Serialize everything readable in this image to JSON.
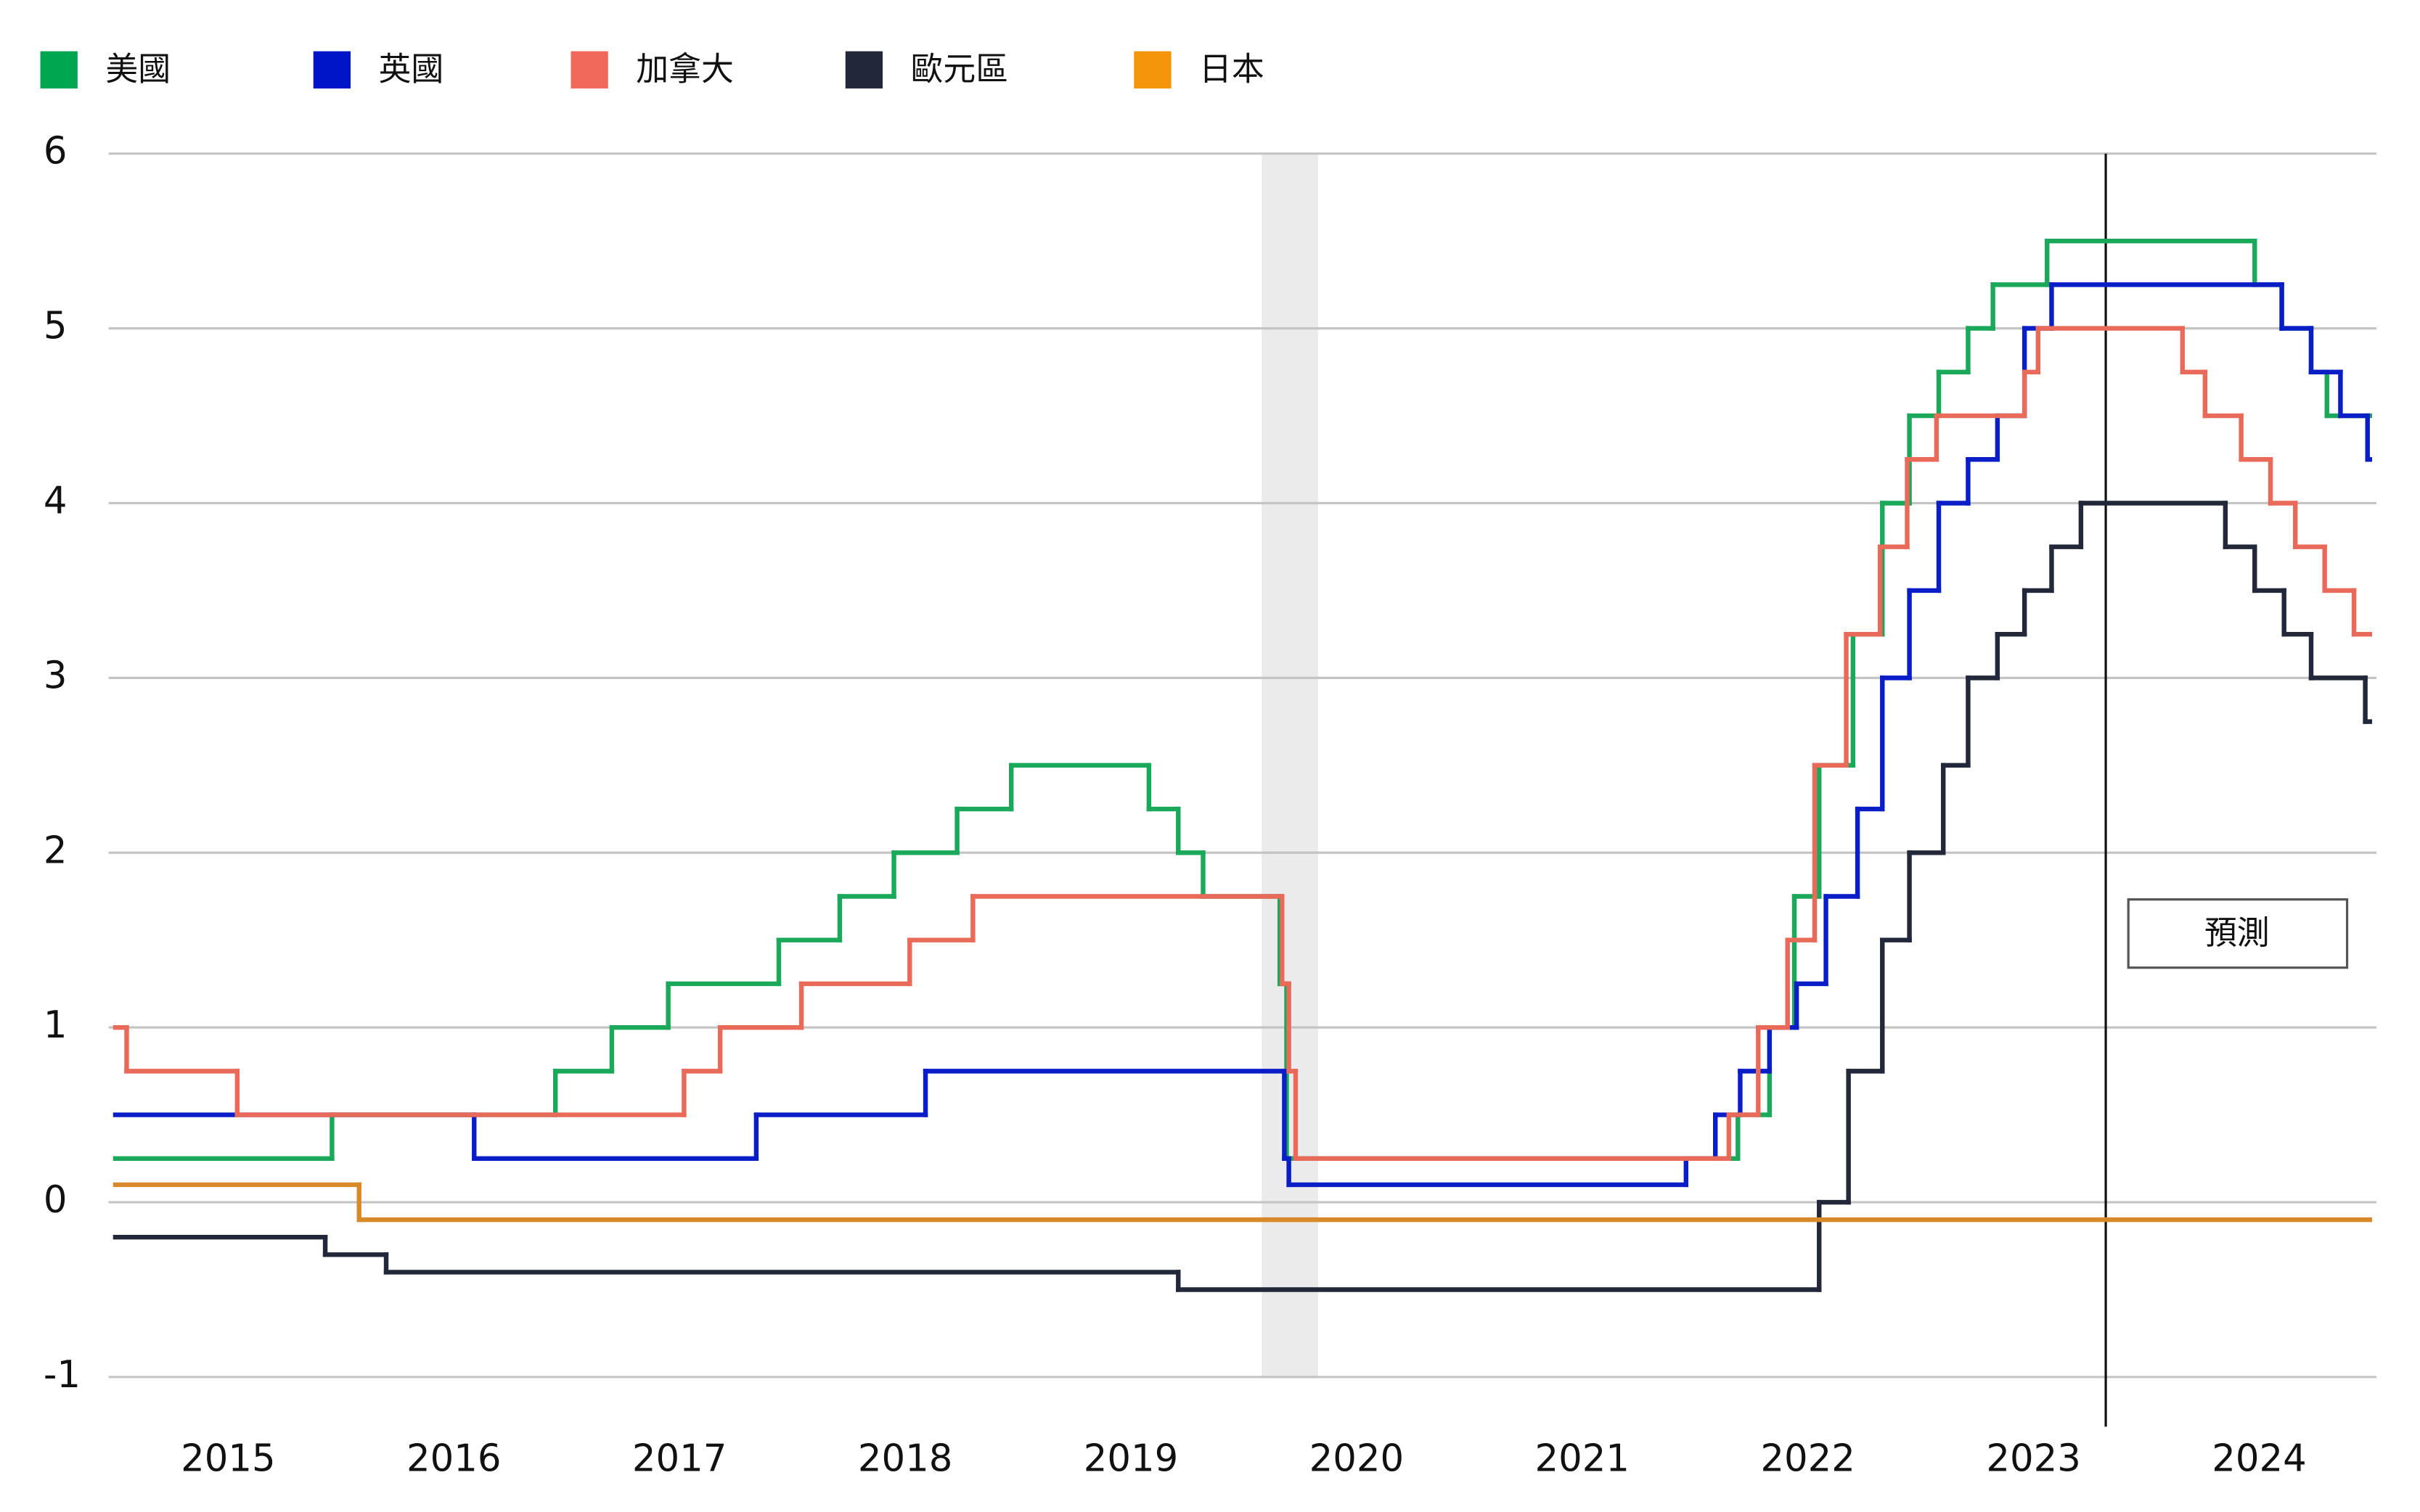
{
  "chart_data": {
    "type": "line",
    "step": "post",
    "xlim": [
      2014.97,
      2025.02
    ],
    "ylim": [
      -1,
      6
    ],
    "yticks": [
      -1,
      0,
      1,
      2,
      3,
      4,
      5,
      6
    ],
    "xticks": [
      {
        "value": 2015.5,
        "label": "2015"
      },
      {
        "value": 2016.5,
        "label": "2016"
      },
      {
        "value": 2017.5,
        "label": "2017"
      },
      {
        "value": 2018.5,
        "label": "2018"
      },
      {
        "value": 2019.5,
        "label": "2019"
      },
      {
        "value": 2020.5,
        "label": "2020"
      },
      {
        "value": 2021.5,
        "label": "2021"
      },
      {
        "value": 2022.5,
        "label": "2022"
      },
      {
        "value": 2023.5,
        "label": "2023"
      },
      {
        "value": 2024.5,
        "label": "2024"
      }
    ],
    "grid": true,
    "legend": "top-left",
    "shaded_ranges": [
      [
        2020.08,
        2020.33
      ]
    ],
    "forecast": {
      "x": 2023.82,
      "label": "預測"
    },
    "series": [
      {
        "name": "美國",
        "color": "#00a650",
        "line_color": "#1aa95a",
        "x": [
          2015.0,
          2015.96,
          2016.95,
          2017.2,
          2017.45,
          2017.94,
          2018.21,
          2018.45,
          2018.73,
          2018.97,
          2019.58,
          2019.71,
          2019.82,
          2020.16,
          2020.19,
          2022.19,
          2022.33,
          2022.44,
          2022.55,
          2022.7,
          2022.83,
          2022.95,
          2023.08,
          2023.21,
          2023.32,
          2023.56,
          2024.48,
          2024.6,
          2024.73,
          2024.8,
          2024.99
        ],
        "values": [
          0.25,
          0.5,
          0.75,
          1.0,
          1.25,
          1.5,
          1.75,
          2.0,
          2.25,
          2.5,
          2.25,
          2.0,
          1.75,
          1.25,
          0.25,
          0.5,
          1.0,
          1.75,
          2.5,
          3.25,
          4.0,
          4.5,
          4.75,
          5.0,
          5.25,
          5.5,
          5.25,
          5.0,
          4.75,
          4.5,
          4.5
        ]
      },
      {
        "name": "英國",
        "color": "#0014c8",
        "line_color": "#0a1ec8",
        "x": [
          2015.0,
          2016.59,
          2017.84,
          2018.59,
          2020.18,
          2020.2,
          2021.96,
          2022.09,
          2022.2,
          2022.33,
          2022.45,
          2022.58,
          2022.72,
          2022.83,
          2022.95,
          2023.08,
          2023.21,
          2023.34,
          2023.46,
          2023.58,
          2024.6,
          2024.73,
          2024.86,
          2024.98,
          2024.99
        ],
        "values": [
          0.5,
          0.25,
          0.5,
          0.75,
          0.25,
          0.1,
          0.25,
          0.5,
          0.75,
          1.0,
          1.25,
          1.75,
          2.25,
          3.0,
          3.5,
          4.0,
          4.25,
          4.5,
          5.0,
          5.25,
          5.0,
          4.75,
          4.5,
          4.25,
          4.25
        ]
      },
      {
        "name": "加拿大",
        "color": "#f0695a",
        "line_color": "#ea6a5a",
        "x": [
          2015.0,
          2015.05,
          2015.54,
          2017.52,
          2017.68,
          2018.04,
          2018.52,
          2018.8,
          2020.17,
          2020.2,
          2020.23,
          2022.15,
          2022.28,
          2022.41,
          2022.53,
          2022.67,
          2022.82,
          2022.94,
          2023.07,
          2023.46,
          2023.52,
          2024.16,
          2024.26,
          2024.42,
          2024.55,
          2024.66,
          2024.79,
          2024.92,
          2024.99
        ],
        "values": [
          1.0,
          0.75,
          0.5,
          0.75,
          1.0,
          1.25,
          1.5,
          1.75,
          1.25,
          0.75,
          0.25,
          0.5,
          1.0,
          1.5,
          2.5,
          3.25,
          3.75,
          4.25,
          4.5,
          4.75,
          5.0,
          4.75,
          4.5,
          4.25,
          4.0,
          3.75,
          3.5,
          3.25,
          3.25
        ]
      },
      {
        "name": "歐元區",
        "color": "#22283a",
        "line_color": "#22283a",
        "x": [
          2015.0,
          2015.93,
          2016.2,
          2019.71,
          2022.55,
          2022.68,
          2022.83,
          2022.95,
          2023.1,
          2023.21,
          2023.34,
          2023.46,
          2023.58,
          2023.71,
          2024.35,
          2024.48,
          2024.61,
          2024.73,
          2024.97,
          2024.99
        ],
        "values": [
          -0.2,
          -0.3,
          -0.4,
          -0.5,
          0.0,
          0.75,
          1.5,
          2.0,
          2.5,
          3.0,
          3.25,
          3.5,
          3.75,
          4.0,
          3.75,
          3.5,
          3.25,
          3.0,
          2.75,
          2.75
        ]
      },
      {
        "name": "日本",
        "color": "#f5960a",
        "line_color": "#d88a2a",
        "x": [
          2015.0,
          2016.08,
          2024.99
        ],
        "values": [
          0.1,
          -0.1,
          -0.1
        ]
      }
    ]
  }
}
